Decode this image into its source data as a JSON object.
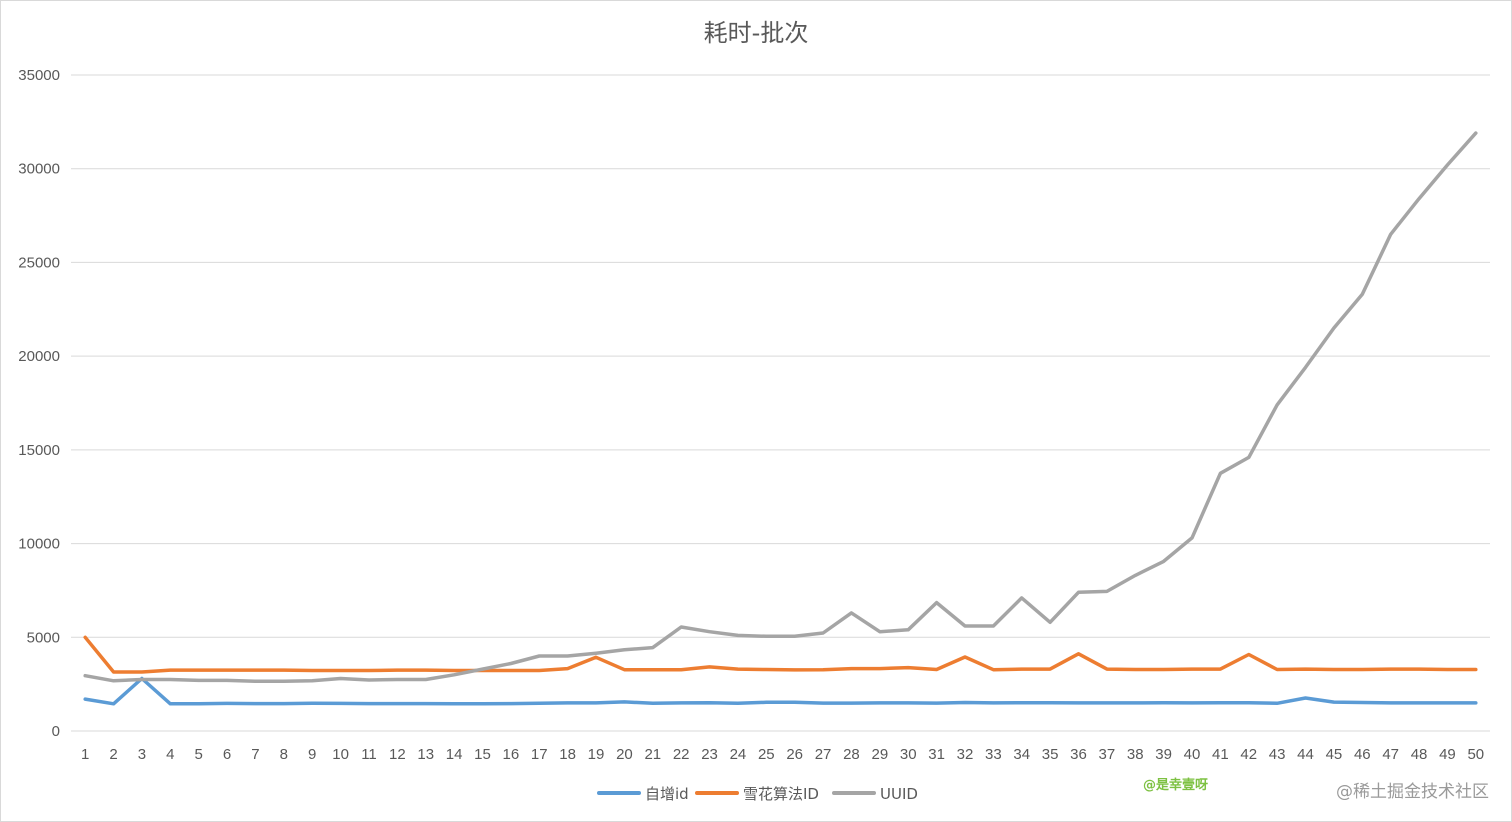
{
  "chart_data": {
    "type": "line",
    "title": "耗时-批次",
    "xlabel": "",
    "ylabel": "",
    "x": [
      1,
      2,
      3,
      4,
      5,
      6,
      7,
      8,
      9,
      10,
      11,
      12,
      13,
      14,
      15,
      16,
      17,
      18,
      19,
      20,
      21,
      22,
      23,
      24,
      25,
      26,
      27,
      28,
      29,
      30,
      31,
      32,
      33,
      34,
      35,
      36,
      37,
      38,
      39,
      40,
      41,
      42,
      43,
      44,
      45,
      46,
      47,
      48,
      49,
      50
    ],
    "ylim": [
      0,
      35000
    ],
    "yticks": [
      "0",
      "5000",
      "10000",
      "15000",
      "20000",
      "25000",
      "30000",
      "35000"
    ],
    "grid": true,
    "legend_position": "bottom",
    "series": [
      {
        "name": "自增id",
        "color": "#5b9bd5",
        "values": [
          1700,
          1450,
          2800,
          1450,
          1450,
          1470,
          1460,
          1460,
          1480,
          1470,
          1460,
          1460,
          1460,
          1450,
          1450,
          1460,
          1480,
          1500,
          1500,
          1550,
          1480,
          1500,
          1510,
          1480,
          1530,
          1530,
          1490,
          1490,
          1500,
          1500,
          1490,
          1520,
          1500,
          1510,
          1510,
          1500,
          1500,
          1500,
          1510,
          1500,
          1510,
          1510,
          1480,
          1760,
          1540,
          1520,
          1500,
          1500,
          1500,
          1500
        ]
      },
      {
        "name": "雪花算法ID",
        "color": "#ed7d31",
        "values": [
          5000,
          3150,
          3150,
          3250,
          3250,
          3250,
          3250,
          3250,
          3230,
          3230,
          3230,
          3250,
          3250,
          3230,
          3230,
          3230,
          3230,
          3330,
          3930,
          3270,
          3270,
          3270,
          3420,
          3300,
          3280,
          3260,
          3270,
          3330,
          3330,
          3380,
          3280,
          3950,
          3270,
          3300,
          3300,
          4120,
          3300,
          3280,
          3280,
          3300,
          3300,
          4080,
          3280,
          3300,
          3280,
          3280,
          3300,
          3300,
          3280,
          3280
        ]
      },
      {
        "name": "UUID",
        "color": "#a5a5a5",
        "values": [
          2950,
          2680,
          2750,
          2750,
          2700,
          2700,
          2650,
          2650,
          2680,
          2800,
          2720,
          2750,
          2750,
          3000,
          3300,
          3600,
          4000,
          4000,
          4150,
          4330,
          4450,
          5550,
          5300,
          5100,
          5050,
          5050,
          5230,
          6300,
          5300,
          5400,
          6850,
          5600,
          5600,
          7100,
          5800,
          7400,
          7450,
          8300,
          9050,
          10300,
          13750,
          14600,
          17400,
          19400,
          21500,
          23300,
          26500,
          28400,
          30200,
          31900
        ]
      }
    ]
  },
  "watermarks": {
    "author": "@是幸壹呀",
    "site": "@稀土掘金技术社区"
  }
}
